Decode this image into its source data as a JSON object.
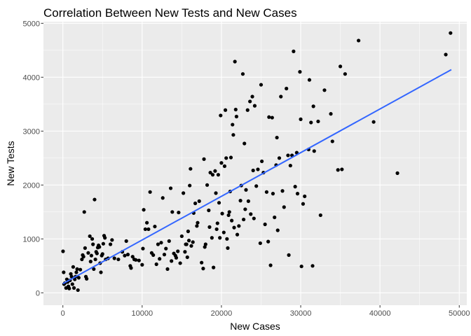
{
  "chart_data": {
    "type": "scatter",
    "title": "Correlation Between New Tests and New Cases",
    "xlabel": "New Cases",
    "ylabel": "New Tests",
    "xlim": [
      -2450,
      50950
    ],
    "ylim": [
      -230,
      5030
    ],
    "xticks": [
      0,
      10000,
      20000,
      30000,
      40000,
      50000
    ],
    "yticks": [
      0,
      1000,
      2000,
      3000,
      4000,
      5000
    ],
    "xtick_labels": [
      "0",
      "10000",
      "20000",
      "30000",
      "40000",
      "50000"
    ],
    "ytick_labels": [
      "0",
      "1000",
      "2000",
      "3000",
      "4000",
      "5000"
    ],
    "grid": true,
    "legend": "none",
    "colors": {
      "panel": "#ebebeb",
      "grid_major": "#ffffff",
      "point": "#000000",
      "trend": "#3366ff",
      "tick": "#333333"
    },
    "trend_line": {
      "x": [
        0,
        49000
      ],
      "y": [
        170,
        4140
      ]
    },
    "points": [
      [
        20,
        770
      ],
      [
        100,
        380
      ],
      [
        150,
        160
      ],
      [
        250,
        180
      ],
      [
        400,
        90
      ],
      [
        500,
        250
      ],
      [
        600,
        200
      ],
      [
        700,
        120
      ],
      [
        800,
        80
      ],
      [
        900,
        230
      ],
      [
        1000,
        350
      ],
      [
        1100,
        300
      ],
      [
        1200,
        160
      ],
      [
        1300,
        480
      ],
      [
        1400,
        90
      ],
      [
        1500,
        250
      ],
      [
        1600,
        300
      ],
      [
        1700,
        380
      ],
      [
        1800,
        440
      ],
      [
        1900,
        50
      ],
      [
        2000,
        280
      ],
      [
        2200,
        430
      ],
      [
        2400,
        620
      ],
      [
        2500,
        700
      ],
      [
        2600,
        670
      ],
      [
        2700,
        1500
      ],
      [
        2800,
        830
      ],
      [
        2900,
        300
      ],
      [
        3000,
        260
      ],
      [
        3200,
        740
      ],
      [
        3400,
        1050
      ],
      [
        3500,
        580
      ],
      [
        3600,
        690
      ],
      [
        3700,
        1000
      ],
      [
        3800,
        900
      ],
      [
        3900,
        440
      ],
      [
        4000,
        1730
      ],
      [
        4100,
        620
      ],
      [
        4200,
        760
      ],
      [
        4300,
        730
      ],
      [
        4400,
        840
      ],
      [
        4500,
        880
      ],
      [
        4600,
        850
      ],
      [
        4700,
        550
      ],
      [
        4800,
        380
      ],
      [
        4900,
        690
      ],
      [
        5000,
        720
      ],
      [
        5100,
        910
      ],
      [
        5200,
        1060
      ],
      [
        5300,
        1020
      ],
      [
        5400,
        620
      ],
      [
        5700,
        640
      ],
      [
        6000,
        900
      ],
      [
        6200,
        980
      ],
      [
        6500,
        640
      ],
      [
        7000,
        620
      ],
      [
        7500,
        760
      ],
      [
        7800,
        690
      ],
      [
        8000,
        960
      ],
      [
        8200,
        710
      ],
      [
        8500,
        500
      ],
      [
        8600,
        460
      ],
      [
        8800,
        670
      ],
      [
        9000,
        620
      ],
      [
        9200,
        610
      ],
      [
        9600,
        600
      ],
      [
        10000,
        520
      ],
      [
        10100,
        820
      ],
      [
        10200,
        1540
      ],
      [
        10400,
        1180
      ],
      [
        10600,
        1300
      ],
      [
        10800,
        1180
      ],
      [
        11000,
        1870
      ],
      [
        11200,
        740
      ],
      [
        11400,
        700
      ],
      [
        11600,
        1230
      ],
      [
        11800,
        530
      ],
      [
        12000,
        900
      ],
      [
        12200,
        630
      ],
      [
        12400,
        930
      ],
      [
        12600,
        1760
      ],
      [
        12800,
        710
      ],
      [
        13000,
        820
      ],
      [
        13200,
        440
      ],
      [
        13400,
        960
      ],
      [
        13600,
        1940
      ],
      [
        13700,
        590
      ],
      [
        13800,
        1500
      ],
      [
        14000,
        730
      ],
      [
        14200,
        690
      ],
      [
        14300,
        650
      ],
      [
        14500,
        770
      ],
      [
        14600,
        1490
      ],
      [
        14800,
        550
      ],
      [
        15000,
        1050
      ],
      [
        15200,
        1850
      ],
      [
        15400,
        760
      ],
      [
        15500,
        900
      ],
      [
        15600,
        900
      ],
      [
        15700,
        660
      ],
      [
        15800,
        1140
      ],
      [
        15900,
        970
      ],
      [
        16000,
        1990
      ],
      [
        16100,
        2300
      ],
      [
        16200,
        870
      ],
      [
        16400,
        940
      ],
      [
        16500,
        1480
      ],
      [
        16700,
        1660
      ],
      [
        16900,
        1240
      ],
      [
        17000,
        1300
      ],
      [
        17200,
        1700
      ],
      [
        17500,
        560
      ],
      [
        17700,
        450
      ],
      [
        17800,
        2480
      ],
      [
        17900,
        850
      ],
      [
        18000,
        900
      ],
      [
        18200,
        2000
      ],
      [
        18400,
        1530
      ],
      [
        18500,
        1220
      ],
      [
        18600,
        2230
      ],
      [
        18800,
        1020
      ],
      [
        18900,
        2190
      ],
      [
        19000,
        470
      ],
      [
        19200,
        2260
      ],
      [
        19300,
        1850
      ],
      [
        19400,
        1180
      ],
      [
        19500,
        1290
      ],
      [
        19600,
        2190
      ],
      [
        19700,
        1670
      ],
      [
        19800,
        1020
      ],
      [
        19900,
        3290
      ],
      [
        20000,
        2410
      ],
      [
        20100,
        1470
      ],
      [
        20300,
        1120
      ],
      [
        20400,
        2350
      ],
      [
        20500,
        3390
      ],
      [
        20600,
        2500
      ],
      [
        20700,
        1000
      ],
      [
        20800,
        830
      ],
      [
        20900,
        1440
      ],
      [
        21000,
        1500
      ],
      [
        21100,
        1880
      ],
      [
        21200,
        2510
      ],
      [
        21300,
        1340
      ],
      [
        21400,
        3120
      ],
      [
        21500,
        2930
      ],
      [
        21600,
        1210
      ],
      [
        21700,
        4290
      ],
      [
        21800,
        3400
      ],
      [
        21900,
        3270
      ],
      [
        22000,
        1080
      ],
      [
        22200,
        1240
      ],
      [
        22400,
        1710
      ],
      [
        22500,
        1990
      ],
      [
        22700,
        4060
      ],
      [
        22800,
        1360
      ],
      [
        22900,
        2770
      ],
      [
        23000,
        1550
      ],
      [
        23100,
        1910
      ],
      [
        23300,
        3390
      ],
      [
        23400,
        1700
      ],
      [
        23600,
        3550
      ],
      [
        23700,
        1460
      ],
      [
        23900,
        3640
      ],
      [
        24000,
        2270
      ],
      [
        24100,
        1380
      ],
      [
        24200,
        3470
      ],
      [
        24400,
        1980
      ],
      [
        24600,
        2290
      ],
      [
        24900,
        920
      ],
      [
        25000,
        3860
      ],
      [
        25100,
        2440
      ],
      [
        25300,
        2230
      ],
      [
        25500,
        1270
      ],
      [
        25700,
        1870
      ],
      [
        25900,
        950
      ],
      [
        26000,
        3260
      ],
      [
        26200,
        510
      ],
      [
        26400,
        3250
      ],
      [
        26500,
        1840
      ],
      [
        26700,
        1400
      ],
      [
        26900,
        2370
      ],
      [
        27000,
        2880
      ],
      [
        27100,
        1160
      ],
      [
        27300,
        2500
      ],
      [
        27500,
        3640
      ],
      [
        27700,
        1890
      ],
      [
        27900,
        1590
      ],
      [
        28200,
        3790
      ],
      [
        28400,
        2550
      ],
      [
        28500,
        700
      ],
      [
        28700,
        2360
      ],
      [
        28900,
        2550
      ],
      [
        29100,
        4480
      ],
      [
        29300,
        1970
      ],
      [
        29500,
        2600
      ],
      [
        29600,
        1840
      ],
      [
        29900,
        4100
      ],
      [
        30000,
        3220
      ],
      [
        30100,
        490
      ],
      [
        30300,
        1650
      ],
      [
        30500,
        1790
      ],
      [
        31000,
        2660
      ],
      [
        31100,
        3950
      ],
      [
        31300,
        3160
      ],
      [
        31500,
        500
      ],
      [
        31600,
        3460
      ],
      [
        31700,
        2630
      ],
      [
        32200,
        3180
      ],
      [
        32500,
        1440
      ],
      [
        33000,
        3760
      ],
      [
        33800,
        3320
      ],
      [
        34000,
        2810
      ],
      [
        34700,
        2280
      ],
      [
        35000,
        4200
      ],
      [
        35200,
        2290
      ],
      [
        35600,
        4060
      ],
      [
        37300,
        4680
      ],
      [
        39200,
        3170
      ],
      [
        42200,
        2220
      ],
      [
        48300,
        4420
      ],
      [
        48900,
        4820
      ]
    ]
  }
}
